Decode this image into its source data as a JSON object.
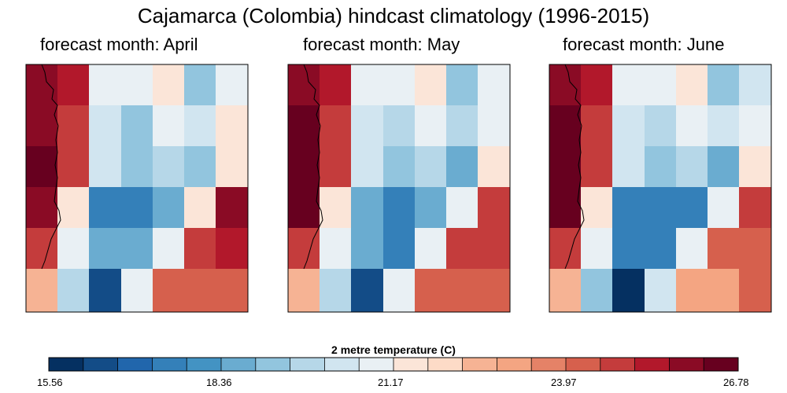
{
  "chart_data": {
    "type": "heatmap",
    "title": "Cajamarca (Colombia) hindcast climatology (1996-2015)",
    "colorbar": {
      "label": "2 metre temperature (C)",
      "range": [
        15.56,
        26.78
      ],
      "ticks": [
        "15.56",
        "18.36",
        "21.17",
        "23.97",
        "26.78"
      ],
      "colors": [
        "#053061",
        "#134c87",
        "#2166ac",
        "#3480b9",
        "#4393c3",
        "#6aacd0",
        "#92c5de",
        "#b6d7e8",
        "#d1e5f0",
        "#e9f0f4",
        "#fbe5d8",
        "#fddbc7",
        "#f6b394",
        "#f4a582",
        "#e58267",
        "#d6604d",
        "#c43c3c",
        "#b2182b",
        "#8a0b25",
        "#67001f"
      ]
    },
    "panels": [
      {
        "title": "forecast month: April",
        "grid": [
          [
            26.2,
            25.3,
            20.7,
            20.7,
            21.6,
            19.3,
            20.9
          ],
          [
            26.2,
            24.6,
            20.3,
            19.3,
            20.7,
            20.3,
            21.3
          ],
          [
            26.7,
            24.6,
            20.3,
            19.3,
            19.8,
            19.3,
            21.6
          ],
          [
            26.2,
            21.5,
            17.6,
            17.6,
            18.4,
            21.2,
            25.7
          ],
          [
            24.6,
            20.7,
            18.4,
            18.4,
            21.0,
            24.6,
            25.3
          ],
          [
            22.8,
            19.8,
            16.6,
            21.0,
            24.3,
            24.3,
            24.3
          ]
        ]
      },
      {
        "title": "forecast month: May",
        "grid": [
          [
            26.2,
            25.3,
            20.7,
            20.7,
            21.6,
            19.3,
            20.7
          ],
          [
            26.6,
            24.6,
            20.3,
            19.8,
            21.0,
            19.8,
            21.0
          ],
          [
            26.6,
            24.6,
            20.3,
            19.3,
            19.8,
            18.8,
            21.7
          ],
          [
            26.6,
            21.5,
            18.4,
            17.6,
            18.4,
            21.0,
            25.0
          ],
          [
            24.6,
            20.7,
            18.4,
            17.6,
            20.7,
            24.6,
            24.6
          ],
          [
            22.8,
            19.8,
            16.6,
            20.7,
            24.0,
            24.0,
            24.0
          ]
        ]
      },
      {
        "title": "forecast month: June",
        "grid": [
          [
            26.2,
            25.3,
            20.7,
            20.7,
            21.6,
            19.3,
            20.3
          ],
          [
            26.6,
            24.6,
            20.3,
            19.8,
            21.0,
            20.3,
            20.7
          ],
          [
            26.6,
            24.6,
            20.3,
            19.3,
            19.8,
            18.4,
            21.2
          ],
          [
            26.6,
            21.6,
            17.6,
            17.6,
            17.6,
            20.7,
            24.6
          ],
          [
            24.6,
            20.7,
            17.6,
            17.6,
            20.7,
            24.0,
            24.0
          ],
          [
            22.8,
            19.3,
            15.8,
            20.3,
            22.9,
            22.9,
            24.0
          ]
        ]
      }
    ]
  }
}
